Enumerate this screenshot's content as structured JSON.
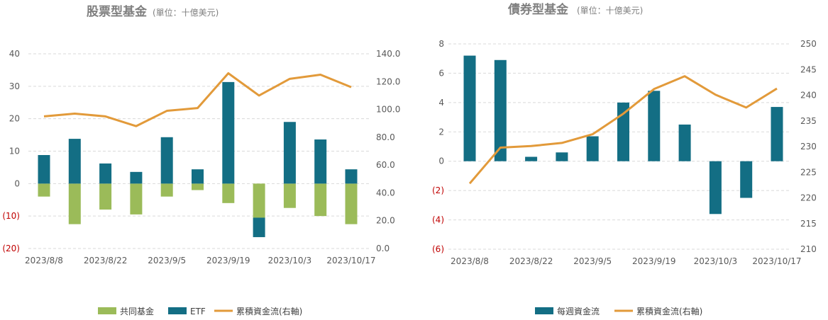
{
  "colors": {
    "mutual_fund": "#9bbb59",
    "etf": "#136e84",
    "cumulative": "#e29a3a",
    "negative_tick": "#c00000",
    "title": "#7f7f7f"
  },
  "chart_data": [
    {
      "type": "bar",
      "title": "股票型基金",
      "subtitle": "(單位：十億美元)",
      "x_tick_labels": [
        "2023/8/8",
        "2023/8/22",
        "2023/9/5",
        "2023/9/19",
        "2023/10/3",
        "2023/10/17"
      ],
      "left_axis": {
        "ticks": [
          "40",
          "30",
          "20",
          "10",
          "0",
          "(10)",
          "(20)"
        ],
        "ylim": [
          -20,
          40
        ]
      },
      "right_axis": {
        "ticks": [
          "140.0",
          "120.0",
          "100.0",
          "80.0",
          "60.0",
          "40.0",
          "20.0",
          "0.0"
        ],
        "ylim": [
          0,
          140
        ]
      },
      "weeks": 11,
      "series": [
        {
          "name": "共同基金",
          "kind": "bar",
          "values": [
            -4,
            -12.5,
            -8,
            -9.5,
            -4,
            -2,
            -6,
            -10.5,
            -7.5,
            -10,
            -12.5
          ]
        },
        {
          "name": "ETF",
          "kind": "bar",
          "values": [
            8.8,
            13.8,
            6.2,
            3.6,
            14.3,
            4.4,
            31.3,
            -6,
            19,
            13.6,
            4.4
          ]
        },
        {
          "name": "累積資金流(右軸)",
          "kind": "line",
          "axis": "right",
          "values": [
            95,
            97,
            95,
            88,
            99,
            101,
            126,
            110,
            122,
            125,
            116
          ]
        }
      ],
      "legend": [
        "共同基金",
        "ETF",
        "累積資金流(右軸)"
      ],
      "legend_position": "bottom"
    },
    {
      "type": "bar",
      "title": "債券型基金",
      "subtitle": "(單位：十億美元)",
      "x_tick_labels": [
        "2023/8/8",
        "2023/8/22",
        "2023/9/5",
        "2023/9/19",
        "2023/10/3",
        "2023/10/17"
      ],
      "left_axis": {
        "ticks": [
          "8",
          "6",
          "4",
          "2",
          "0",
          "(2)",
          "(4)",
          "(6)"
        ],
        "ylim": [
          -6,
          8
        ]
      },
      "right_axis": {
        "ticks": [
          "250",
          "245",
          "240",
          "235",
          "230",
          "225",
          "220",
          "215",
          "210"
        ],
        "ylim": [
          210,
          250
        ]
      },
      "weeks": 11,
      "series": [
        {
          "name": "每週資金流",
          "kind": "bar",
          "values": [
            7.2,
            6.9,
            0.3,
            0.6,
            1.7,
            4,
            4.8,
            2.5,
            -3.6,
            -2.5,
            3.7
          ]
        },
        {
          "name": "累積資金流(右軸)",
          "kind": "line",
          "axis": "right",
          "values": [
            222.8,
            229.8,
            230.1,
            230.7,
            232.4,
            236.4,
            241.2,
            243.7,
            240.1,
            237.6,
            241.3
          ]
        }
      ],
      "legend": [
        "每週資金流",
        "累積資金流(右軸)"
      ],
      "legend_position": "bottom"
    }
  ]
}
